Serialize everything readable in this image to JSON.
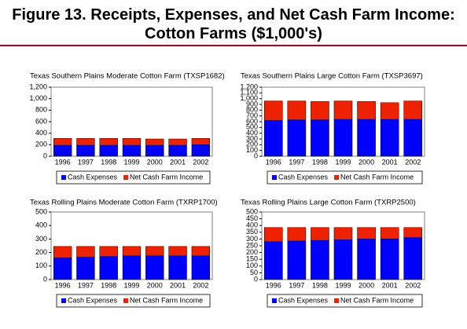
{
  "title": "Figure 13.  Receipts, Expenses, and Net Cash Farm Income:  Cotton Farms ($1,000's)",
  "chart_data": [
    {
      "type": "bar",
      "stacked": true,
      "title": "Texas Southern Plains Moderate Cotton Farm (TXSP1682)",
      "categories": [
        "1996",
        "1997",
        "1998",
        "1999",
        "2000",
        "2001",
        "2002"
      ],
      "series": [
        {
          "name": "Cash Expenses",
          "color": "#0000ff",
          "values": [
            190,
            190,
            190,
            190,
            190,
            190,
            200
          ]
        },
        {
          "name": "Net Cash Farm Income",
          "color": "#ee2200",
          "values": [
            120,
            120,
            120,
            120,
            110,
            110,
            110
          ]
        }
      ],
      "ylim": [
        0,
        1200
      ],
      "yticks": [
        0,
        200,
        400,
        600,
        800,
        {
          "value": 1000,
          "label": "1,000"
        },
        {
          "value": 1200,
          "label": "1,200"
        }
      ],
      "legend": "bottom"
    },
    {
      "type": "bar",
      "stacked": true,
      "title": "Texas Southern Plains Large Cotton Farm (TXSP3697)",
      "categories": [
        "1996",
        "1997",
        "1998",
        "1999",
        "2000",
        "2001",
        "2002"
      ],
      "series": [
        {
          "name": "Cash Expenses",
          "color": "#0000ff",
          "values": [
            620,
            630,
            630,
            640,
            640,
            640,
            640
          ]
        },
        {
          "name": "Net Cash Farm Income",
          "color": "#ee2200",
          "values": [
            340,
            330,
            320,
            320,
            310,
            290,
            320
          ]
        }
      ],
      "ylim": [
        0,
        1200
      ],
      "yticks": [
        0,
        100,
        200,
        300,
        400,
        500,
        600,
        700,
        800,
        900,
        {
          "value": 1000,
          "label": "1,000"
        },
        {
          "value": 1100,
          "label": "1,100"
        },
        {
          "value": 1200,
          "label": "1,200"
        }
      ],
      "legend": "bottom"
    },
    {
      "type": "bar",
      "stacked": true,
      "title": "Texas Rolling Plains Moderate Cotton Farm (TXRP1700)",
      "categories": [
        "1996",
        "1997",
        "1998",
        "1999",
        "2000",
        "2001",
        "2002"
      ],
      "series": [
        {
          "name": "Cash Expenses",
          "color": "#0000ff",
          "values": [
            160,
            165,
            170,
            175,
            175,
            175,
            175
          ]
        },
        {
          "name": "Net Cash Farm Income",
          "color": "#ee2200",
          "values": [
            85,
            80,
            75,
            70,
            70,
            70,
            70
          ]
        }
      ],
      "ylim": [
        0,
        500
      ],
      "yticks": [
        0,
        100,
        200,
        300,
        400,
        500
      ],
      "legend": "bottom"
    },
    {
      "type": "bar",
      "stacked": true,
      "title": "Texas Rolling Plains Large Cotton Farm (TXRP2500)",
      "categories": [
        "1996",
        "1997",
        "1998",
        "1999",
        "2000",
        "2001",
        "2002"
      ],
      "series": [
        {
          "name": "Cash Expenses",
          "color": "#0000ff",
          "values": [
            280,
            285,
            290,
            295,
            300,
            300,
            310
          ]
        },
        {
          "name": "Net Cash Farm Income",
          "color": "#ee2200",
          "values": [
            105,
            100,
            95,
            90,
            85,
            85,
            75
          ]
        }
      ],
      "ylim": [
        0,
        500
      ],
      "yticks": [
        0,
        50,
        100,
        150,
        200,
        250,
        300,
        350,
        400,
        450,
        500
      ],
      "legend": "bottom"
    }
  ]
}
